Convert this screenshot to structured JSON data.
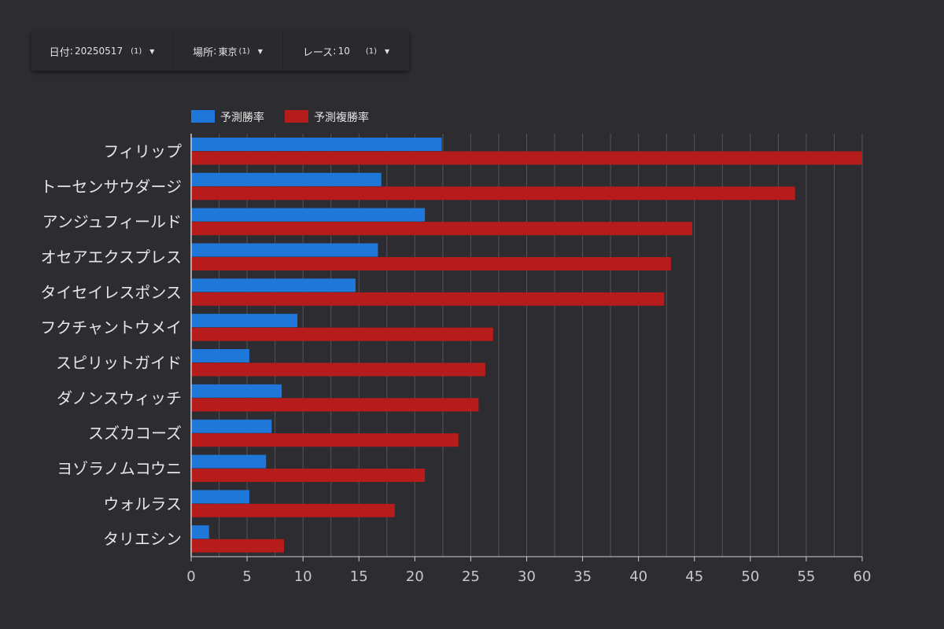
{
  "filters": [
    {
      "label": "日付",
      "value": "20250517",
      "count": "(1)"
    },
    {
      "label": "場所",
      "value": "東京",
      "count": "(1)"
    },
    {
      "label": "レース",
      "value": "10",
      "count": "(1)"
    }
  ],
  "colors": {
    "win": "#1f78d9",
    "place": "#b71c1c",
    "grid": "#55545a",
    "axis": "#cfcfcf",
    "text": "#e6e6e6"
  },
  "chart_data": {
    "type": "bar",
    "orientation": "horizontal",
    "categories": [
      "フィリップ",
      "トーセンサウダージ",
      "アンジュフィールド",
      "オセアエクスプレス",
      "タイセイレスポンス",
      "フクチャントウメイ",
      "スピリットガイド",
      "ダノンスウィッチ",
      "スズカコーズ",
      "ヨゾラノムコウニ",
      "ウォルラス",
      "タリエシン"
    ],
    "series": [
      {
        "name": "予測勝率",
        "values": [
          22.4,
          17.0,
          20.9,
          16.7,
          14.7,
          9.5,
          5.2,
          8.1,
          7.2,
          6.7,
          5.2,
          1.6
        ]
      },
      {
        "name": "予測複勝率",
        "values": [
          60.0,
          54.0,
          44.8,
          42.9,
          42.3,
          27.0,
          26.3,
          25.7,
          23.9,
          20.9,
          18.2,
          8.3
        ]
      }
    ],
    "xlim": [
      0,
      60
    ],
    "xticks": [
      0,
      5,
      10,
      15,
      20,
      25,
      30,
      35,
      40,
      45,
      50,
      55,
      60
    ],
    "legend_position": "top-left",
    "grid": true
  }
}
